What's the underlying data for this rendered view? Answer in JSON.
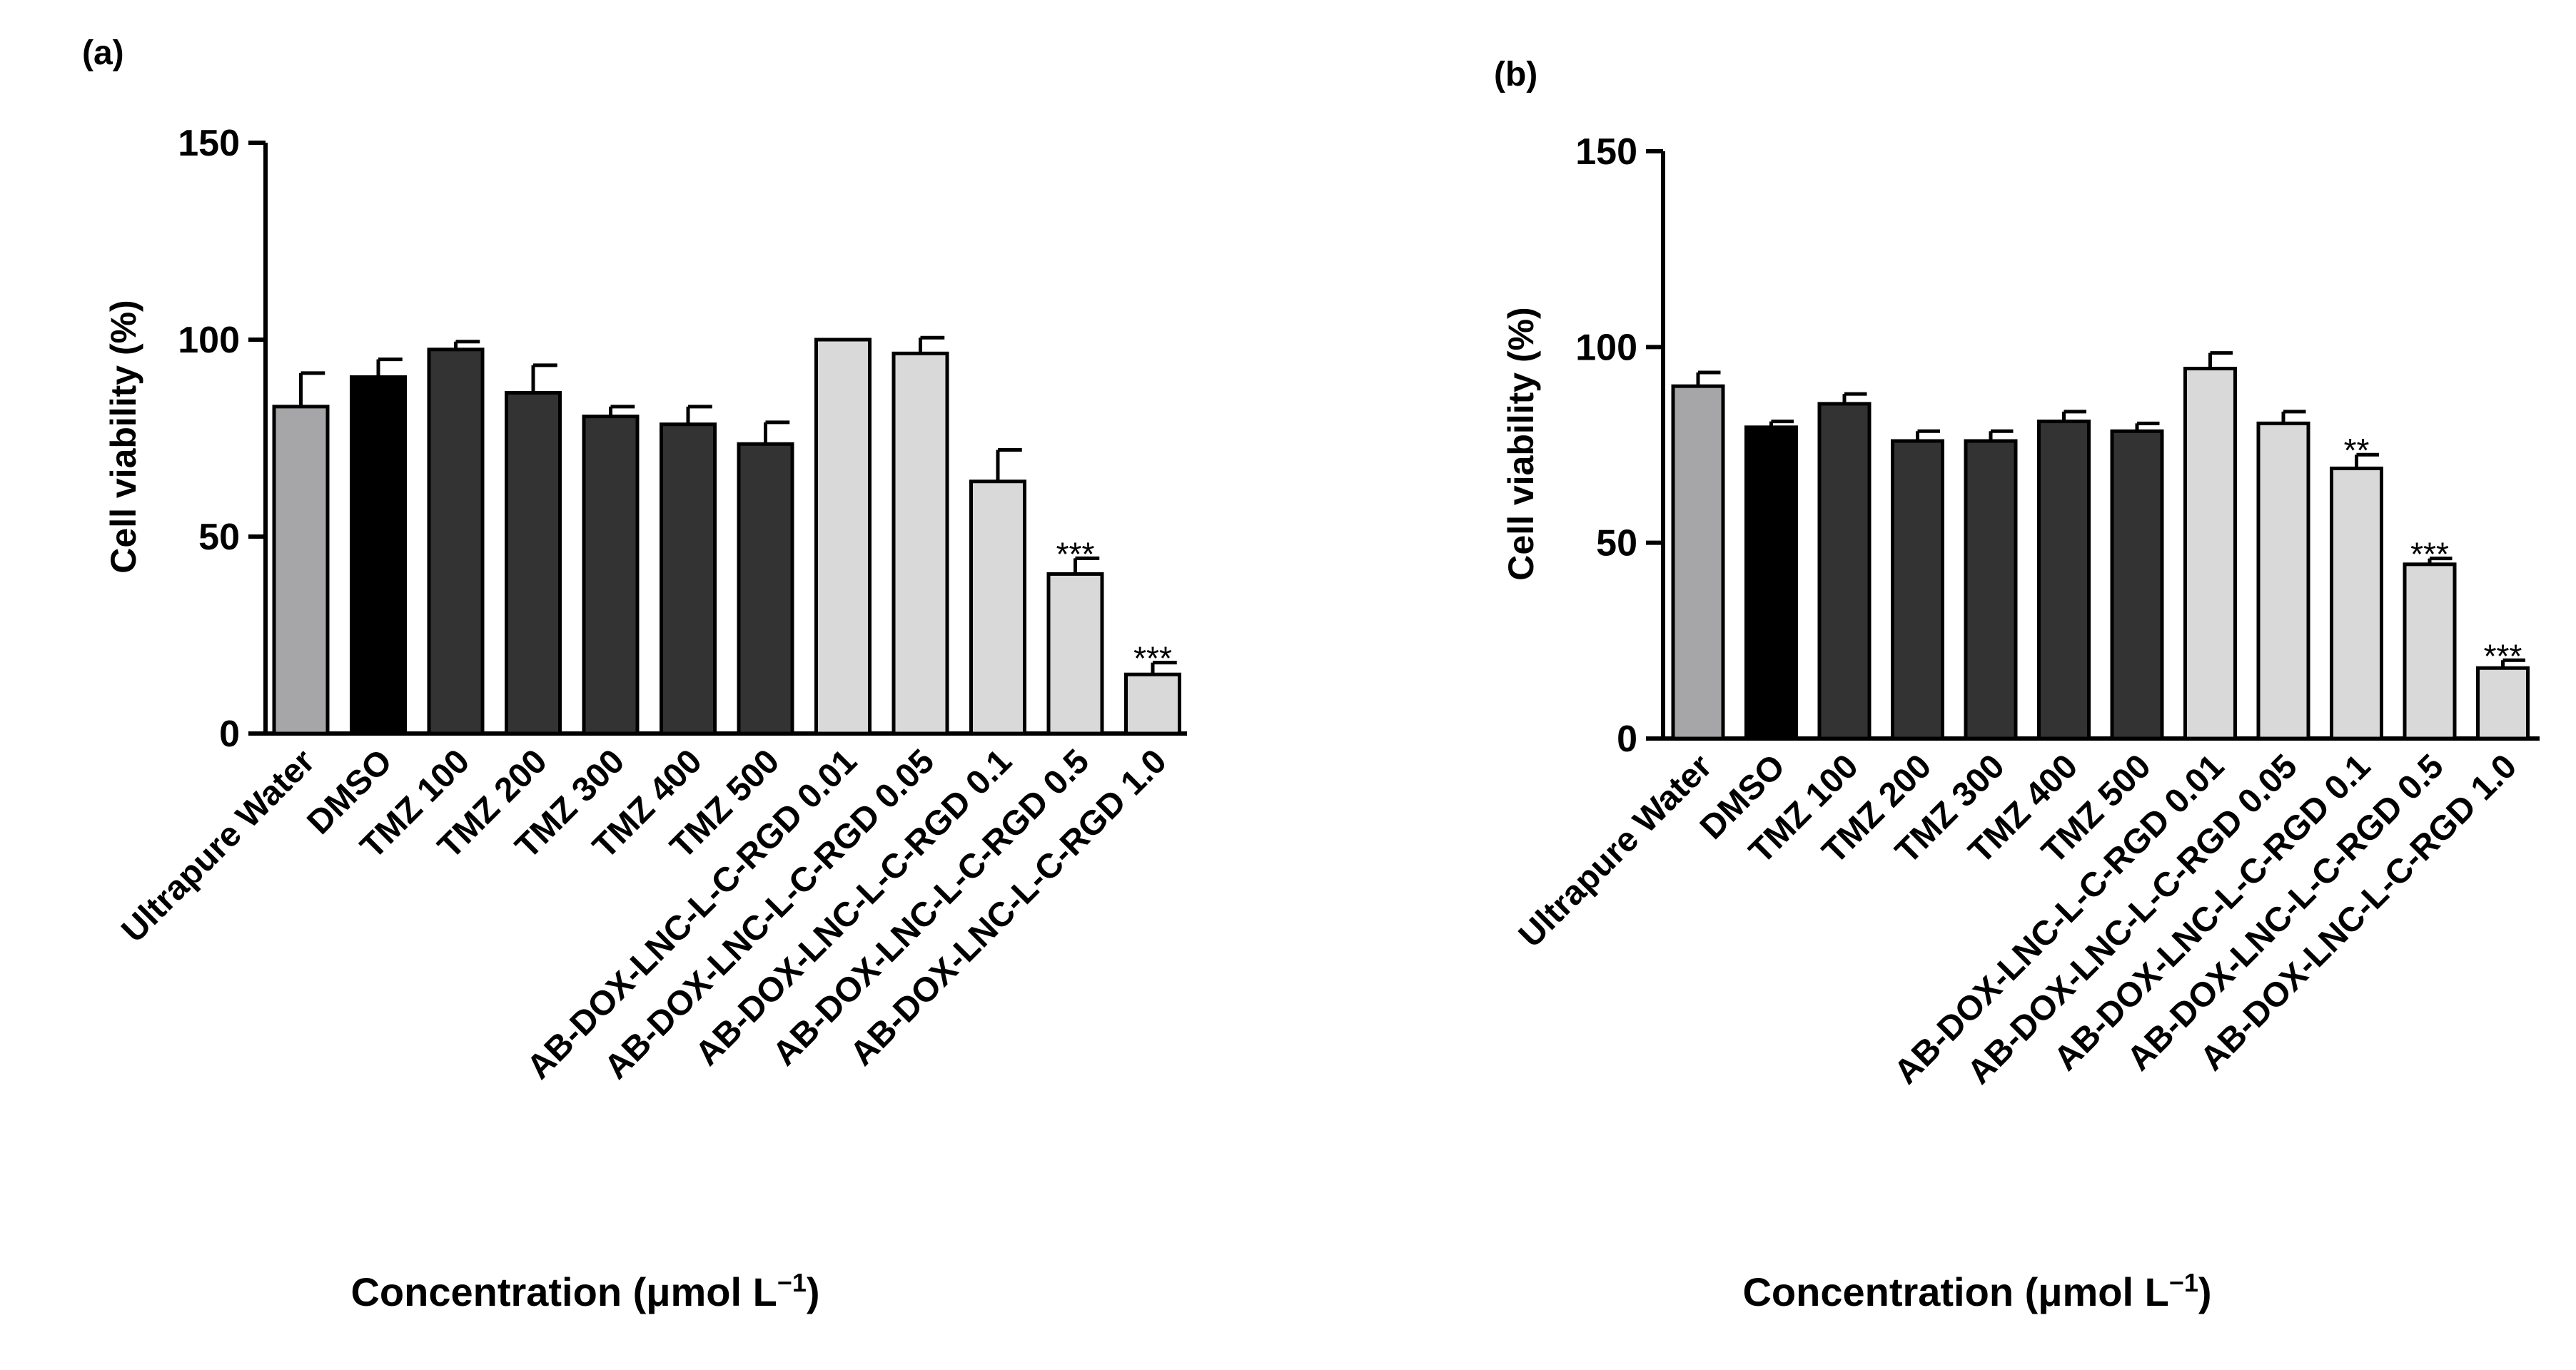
{
  "colors": {
    "control_water": "#a6a6a8",
    "control_dmso": "#000000",
    "tmz": "#333333",
    "ab_dox": "#d9d9d9",
    "outline": "#000000"
  },
  "chart_data": [
    {
      "type": "bar",
      "panel_label": "(a)",
      "title": "",
      "xlabel": "Concentration (μmol L",
      "xlabel_sup": "−1",
      "xlabel_close": ")",
      "ylabel": "Cell viability (%)",
      "ylim": [
        0,
        150
      ],
      "yticks": [
        0,
        50,
        100,
        150
      ],
      "ytick_labels": [
        "0",
        "50",
        "100",
        "150"
      ],
      "categories": [
        "Ultrapure Water",
        "DMSO",
        "TMZ 100",
        "TMZ 200",
        "TMZ 300",
        "TMZ 400",
        "TMZ 500",
        "AB-DOX-LNC-L-C-RGD 0.01",
        "AB-DOX-LNC-L-C-RGD 0.05",
        "AB-DOX-LNC-L-C-RGD 0.1",
        "AB-DOX-LNC-L-C-RGD 0.5",
        "AB-DOX-LNC-L-C-RGD 1.0"
      ],
      "values": [
        83,
        90.5,
        97.5,
        86.5,
        80.5,
        78.5,
        73.5,
        100,
        96.5,
        64,
        40.5,
        15
      ],
      "errors": [
        8.5,
        4.5,
        2,
        7,
        2.5,
        4.5,
        5.5,
        0,
        4,
        8,
        4,
        3
      ],
      "color_groups": [
        "control_water",
        "control_dmso",
        "tmz",
        "tmz",
        "tmz",
        "tmz",
        "tmz",
        "ab_dox",
        "ab_dox",
        "ab_dox",
        "ab_dox",
        "ab_dox"
      ],
      "annotations": [
        "",
        "",
        "",
        "",
        "",
        "",
        "",
        "",
        "",
        "",
        "***",
        "***"
      ],
      "grid": false
    },
    {
      "type": "bar",
      "panel_label": "(b)",
      "title": "",
      "xlabel": "Concentration (μmol L",
      "xlabel_sup": "−1",
      "xlabel_close": ")",
      "ylabel": "Cell viability (%)",
      "ylim": [
        0,
        150
      ],
      "yticks": [
        0,
        50,
        100,
        150
      ],
      "ytick_labels": [
        "0",
        "50",
        "100",
        "150"
      ],
      "categories": [
        "Ultrapure Water",
        "DMSO",
        "TMZ 100",
        "TMZ 200",
        "TMZ 300",
        "TMZ 400",
        "TMZ 500",
        "AB-DOX-LNC-L-C-RGD 0.01",
        "AB-DOX-LNC-L-C-RGD 0.05",
        "AB-DOX-LNC-L-C-RGD 0.1",
        "AB-DOX-LNC-L-C-RGD 0.5",
        "AB-DOX-LNC-L-C-RGD 1.0"
      ],
      "values": [
        90,
        79.5,
        85.5,
        76,
        76,
        81,
        78.5,
        94.5,
        80.5,
        69,
        44.5,
        18
      ],
      "errors": [
        3.5,
        1.5,
        2.5,
        2.5,
        2.5,
        2.5,
        2,
        4,
        3,
        3.5,
        1.5,
        2
      ],
      "color_groups": [
        "control_water",
        "control_dmso",
        "tmz",
        "tmz",
        "tmz",
        "tmz",
        "tmz",
        "ab_dox",
        "ab_dox",
        "ab_dox",
        "ab_dox",
        "ab_dox"
      ],
      "annotations": [
        "",
        "",
        "",
        "",
        "",
        "",
        "",
        "",
        "",
        "**",
        "***",
        "***"
      ],
      "grid": false
    }
  ]
}
